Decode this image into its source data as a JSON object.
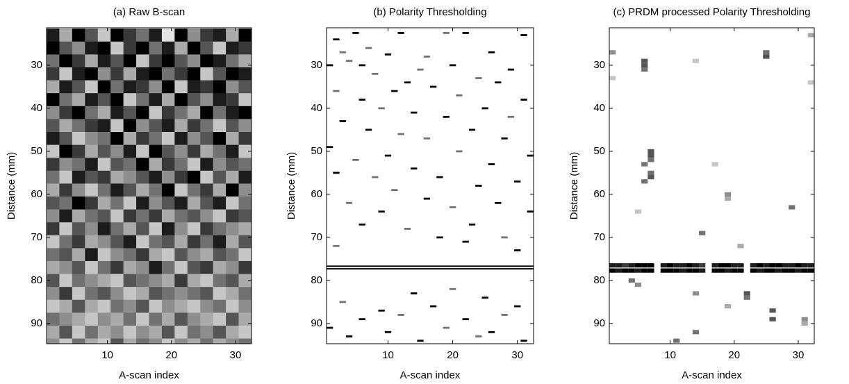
{
  "chart_data": [
    {
      "type": "heatmap",
      "title": "(a) Raw B-scan",
      "xlabel": "A-scan index",
      "ylabel": "Distance (mm)",
      "xlim": [
        0.5,
        32.5
      ],
      "ylim": [
        21.3,
        94.7
      ],
      "xticks": [
        10,
        20,
        30
      ],
      "yticks": [
        30,
        40,
        50,
        60,
        70,
        80,
        90
      ],
      "y_reversed": true,
      "x": [
        1.5,
        3.5,
        5.5,
        7.5,
        9.5,
        11.5,
        13.5,
        15.5,
        17.5,
        19.5,
        21.5,
        23.5,
        25.5,
        27.5,
        29.5,
        31.5
      ],
      "y": [
        23,
        26,
        29,
        32,
        35,
        38,
        41,
        44,
        47,
        50,
        53,
        56,
        59,
        62,
        65,
        68,
        71,
        74,
        77,
        80,
        83,
        86,
        89,
        92,
        95
      ],
      "z": [
        [
          8,
          3,
          9,
          6,
          2,
          9,
          7,
          5,
          8,
          1,
          9,
          4,
          7,
          8,
          3,
          9
        ],
        [
          9,
          6,
          4,
          8,
          9,
          2,
          7,
          9,
          5,
          8,
          3,
          9,
          6,
          2,
          8,
          7
        ],
        [
          5,
          9,
          7,
          3,
          8,
          6,
          9,
          2,
          7,
          9,
          6,
          4,
          9,
          8,
          5,
          3
        ],
        [
          7,
          2,
          8,
          9,
          4,
          7,
          3,
          8,
          9,
          5,
          7,
          9,
          2,
          6,
          9,
          8
        ],
        [
          3,
          8,
          6,
          2,
          9,
          5,
          8,
          7,
          4,
          9,
          2,
          8,
          7,
          9,
          4,
          6
        ],
        [
          9,
          5,
          3,
          8,
          6,
          9,
          2,
          5,
          8,
          3,
          9,
          6,
          4,
          8,
          7,
          2
        ],
        [
          4,
          7,
          9,
          5,
          3,
          8,
          6,
          9,
          2,
          7,
          5,
          3,
          9,
          5,
          8,
          9
        ],
        [
          6,
          3,
          5,
          7,
          8,
          2,
          9,
          4,
          6,
          8,
          3,
          7,
          5,
          2,
          6,
          4
        ],
        [
          8,
          6,
          2,
          4,
          5,
          9,
          3,
          7,
          5,
          2,
          8,
          4,
          6,
          9,
          3,
          7
        ],
        [
          2,
          9,
          7,
          3,
          6,
          4,
          8,
          2,
          9,
          6,
          4,
          7,
          3,
          5,
          8,
          2
        ],
        [
          7,
          4,
          5,
          8,
          2,
          6,
          5,
          9,
          3,
          7,
          5,
          2,
          8,
          4,
          6,
          5
        ],
        [
          5,
          2,
          8,
          6,
          7,
          3,
          4,
          6,
          8,
          4,
          7,
          9,
          2,
          6,
          3,
          8
        ],
        [
          3,
          7,
          4,
          2,
          5,
          8,
          6,
          3,
          5,
          9,
          2,
          5,
          7,
          3,
          9,
          4
        ],
        [
          6,
          5,
          9,
          7,
          3,
          5,
          2,
          8,
          4,
          6,
          8,
          3,
          6,
          8,
          2,
          5
        ],
        [
          4,
          8,
          3,
          5,
          6,
          2,
          7,
          5,
          7,
          3,
          5,
          6,
          4,
          2,
          7,
          6
        ],
        [
          7,
          2,
          6,
          4,
          8,
          5,
          3,
          6,
          2,
          8,
          4,
          2,
          7,
          5,
          4,
          3
        ],
        [
          2,
          5,
          7,
          3,
          4,
          6,
          8,
          2,
          5,
          6,
          3,
          7,
          5,
          8,
          3,
          6
        ],
        [
          5,
          6,
          3,
          8,
          2,
          4,
          5,
          7,
          3,
          2,
          6,
          4,
          3,
          6,
          5,
          2
        ],
        [
          3,
          4,
          6,
          2,
          5,
          7,
          3,
          4,
          8,
          5,
          2,
          6,
          7,
          3,
          4,
          7
        ],
        [
          6,
          2,
          5,
          4,
          3,
          2,
          6,
          5,
          4,
          3,
          7,
          3,
          2,
          5,
          6,
          3
        ],
        [
          4,
          7,
          2,
          5,
          6,
          4,
          2,
          3,
          6,
          5,
          4,
          5,
          6,
          2,
          3,
          5
        ],
        [
          2,
          3,
          6,
          3,
          2,
          5,
          4,
          6,
          2,
          4,
          3,
          2,
          4,
          5,
          2,
          4
        ],
        [
          5,
          4,
          3,
          2,
          4,
          3,
          5,
          2,
          5,
          3,
          6,
          4,
          3,
          2,
          6,
          3
        ],
        [
          3,
          6,
          2,
          5,
          3,
          4,
          2,
          4,
          3,
          6,
          2,
          5,
          4,
          6,
          3,
          2
        ],
        [
          4,
          2,
          5,
          3,
          2,
          6,
          3,
          5,
          4,
          2,
          4,
          3,
          5,
          3,
          4,
          5
        ]
      ]
    },
    {
      "type": "heatmap",
      "title": "(b) Polarity Thresholding",
      "xlabel": "A-scan index",
      "ylabel": "Distance (mm)",
      "xlim": [
        0.5,
        32.5
      ],
      "ylim": [
        21.3,
        94.7
      ],
      "xticks": [
        10,
        20,
        30
      ],
      "yticks": [
        30,
        40,
        50,
        60,
        70,
        80,
        90
      ],
      "y_reversed": true,
      "cells": [
        [
          2,
          24,
          9
        ],
        [
          5,
          22.5,
          9
        ],
        [
          7,
          26,
          5
        ],
        [
          12,
          22.5,
          9
        ],
        [
          19,
          22.5,
          5
        ],
        [
          22,
          22.5,
          9
        ],
        [
          31,
          23,
          9
        ],
        [
          3,
          27,
          5
        ],
        [
          10,
          27.5,
          9
        ],
        [
          16,
          28,
          5
        ],
        [
          26,
          27,
          9
        ],
        [
          1,
          30,
          9
        ],
        [
          4,
          29,
          5
        ],
        [
          6,
          30,
          9
        ],
        [
          15,
          31,
          5
        ],
        [
          20,
          30,
          9
        ],
        [
          29,
          31,
          9
        ],
        [
          8,
          32,
          5
        ],
        [
          24,
          33,
          5
        ],
        [
          13,
          34,
          9
        ],
        [
          27,
          34,
          9
        ],
        [
          2,
          36,
          5
        ],
        [
          11,
          36,
          9
        ],
        [
          17,
          35,
          9
        ],
        [
          6,
          38,
          9
        ],
        [
          21,
          37,
          5
        ],
        [
          31,
          38,
          9
        ],
        [
          9,
          40,
          5
        ],
        [
          14,
          41,
          9
        ],
        [
          25,
          40,
          9
        ],
        [
          3,
          43,
          9
        ],
        [
          19,
          42,
          9
        ],
        [
          29,
          42,
          5
        ],
        [
          7,
          45,
          9
        ],
        [
          12,
          46,
          5
        ],
        [
          23,
          45,
          9
        ],
        [
          16,
          47,
          5
        ],
        [
          28,
          47,
          9
        ],
        [
          1,
          49,
          9
        ],
        [
          10,
          51,
          9
        ],
        [
          21,
          50,
          5
        ],
        [
          32,
          51,
          9
        ],
        [
          5,
          52,
          5
        ],
        [
          14,
          54,
          9
        ],
        [
          26,
          53,
          9
        ],
        [
          2,
          55,
          9
        ],
        [
          8,
          56,
          5
        ],
        [
          18,
          56,
          9
        ],
        [
          30,
          57,
          9
        ],
        [
          11,
          59,
          5
        ],
        [
          24,
          58,
          9
        ],
        [
          4,
          62,
          5
        ],
        [
          16,
          61,
          9
        ],
        [
          27,
          62,
          9
        ],
        [
          9,
          64,
          9
        ],
        [
          20,
          63,
          5
        ],
        [
          32,
          64,
          9
        ],
        [
          6,
          67,
          9
        ],
        [
          13,
          68,
          5
        ],
        [
          23,
          67,
          9
        ],
        [
          18,
          70,
          9
        ],
        [
          28,
          70,
          5
        ],
        [
          2,
          72,
          5
        ],
        [
          22,
          71,
          9
        ],
        [
          30,
          73,
          9
        ],
        [
          14,
          83,
          9
        ],
        [
          20,
          82,
          5
        ],
        [
          25,
          84,
          9
        ],
        [
          3,
          85,
          5
        ],
        [
          9,
          87,
          9
        ],
        [
          17,
          86,
          9
        ],
        [
          30,
          86,
          9
        ],
        [
          6,
          89,
          9
        ],
        [
          12,
          88,
          5
        ],
        [
          22,
          89,
          9
        ],
        [
          28,
          88,
          5
        ],
        [
          1,
          91,
          9
        ],
        [
          10,
          92,
          9
        ],
        [
          19,
          91,
          5
        ],
        [
          26,
          92,
          9
        ],
        [
          4,
          93,
          9
        ],
        [
          15,
          94,
          9
        ],
        [
          24,
          93,
          5
        ],
        [
          31,
          94,
          9
        ]
      ],
      "hlines": [
        76.7,
        77.3
      ]
    },
    {
      "type": "heatmap",
      "title": "(c) PRDM processed Polarity Thresholding",
      "xlabel": "A-scan index",
      "ylabel": "Distance (mm)",
      "xlim": [
        0.5,
        32.5
      ],
      "ylim": [
        21.3,
        94.7
      ],
      "xticks": [
        10,
        20,
        30
      ],
      "yticks": [
        30,
        40,
        50,
        60,
        70,
        80,
        90
      ],
      "y_reversed": true,
      "cells": [
        [
          1,
          27,
          4
        ],
        [
          6,
          29,
          6
        ],
        [
          6,
          30,
          6
        ],
        [
          6,
          31,
          5
        ],
        [
          14,
          29,
          2
        ],
        [
          25,
          27,
          5
        ],
        [
          25,
          28,
          6
        ],
        [
          32,
          23,
          3
        ],
        [
          1,
          33,
          2
        ],
        [
          32,
          34,
          2
        ],
        [
          7,
          50,
          6
        ],
        [
          7,
          51,
          6
        ],
        [
          7,
          52,
          5
        ],
        [
          6,
          53,
          5
        ],
        [
          7,
          55,
          5
        ],
        [
          7,
          56,
          6
        ],
        [
          6,
          57,
          5
        ],
        [
          17,
          53,
          2
        ],
        [
          19,
          60,
          4
        ],
        [
          19,
          61,
          3
        ],
        [
          15,
          69,
          5
        ],
        [
          29,
          63,
          5
        ],
        [
          5,
          64,
          2
        ],
        [
          21,
          72,
          3
        ],
        [
          1,
          76.5,
          8
        ],
        [
          2,
          76.5,
          8
        ],
        [
          3,
          76.5,
          7
        ],
        [
          4,
          76.5,
          8
        ],
        [
          5,
          76.5,
          9
        ],
        [
          6,
          76.5,
          9
        ],
        [
          7,
          76.5,
          9
        ],
        [
          9,
          76.5,
          8
        ],
        [
          10,
          76.5,
          9
        ],
        [
          11,
          76.5,
          8
        ],
        [
          12,
          76.5,
          8
        ],
        [
          13,
          76.5,
          9
        ],
        [
          14,
          76.5,
          8
        ],
        [
          15,
          76.5,
          7
        ],
        [
          17,
          76.5,
          8
        ],
        [
          18,
          76.5,
          9
        ],
        [
          19,
          76.5,
          9
        ],
        [
          20,
          76.5,
          8
        ],
        [
          21,
          76.5,
          8
        ],
        [
          23,
          76.5,
          8
        ],
        [
          24,
          76.5,
          9
        ],
        [
          25,
          76.5,
          8
        ],
        [
          26,
          76.5,
          9
        ],
        [
          27,
          76.5,
          9
        ],
        [
          28,
          76.5,
          8
        ],
        [
          29,
          76.5,
          8
        ],
        [
          30,
          76.5,
          9
        ],
        [
          31,
          76.5,
          8
        ],
        [
          32,
          76.5,
          8
        ],
        [
          1,
          77.7,
          9
        ],
        [
          2,
          77.7,
          8
        ],
        [
          3,
          77.7,
          9
        ],
        [
          4,
          77.7,
          9
        ],
        [
          5,
          77.7,
          8
        ],
        [
          6,
          77.7,
          9
        ],
        [
          7,
          77.7,
          9
        ],
        [
          9,
          77.7,
          9
        ],
        [
          10,
          77.7,
          9
        ],
        [
          11,
          77.7,
          9
        ],
        [
          12,
          77.7,
          8
        ],
        [
          13,
          77.7,
          9
        ],
        [
          14,
          77.7,
          9
        ],
        [
          15,
          77.7,
          8
        ],
        [
          17,
          77.7,
          9
        ],
        [
          18,
          77.7,
          9
        ],
        [
          19,
          77.7,
          8
        ],
        [
          20,
          77.7,
          9
        ],
        [
          21,
          77.7,
          9
        ],
        [
          23,
          77.7,
          9
        ],
        [
          24,
          77.7,
          8
        ],
        [
          25,
          77.7,
          9
        ],
        [
          26,
          77.7,
          9
        ],
        [
          27,
          77.7,
          8
        ],
        [
          28,
          77.7,
          9
        ],
        [
          29,
          77.7,
          9
        ],
        [
          30,
          77.7,
          8
        ],
        [
          31,
          77.7,
          9
        ],
        [
          32,
          77.7,
          9
        ],
        [
          4,
          80,
          5
        ],
        [
          5,
          81,
          4
        ],
        [
          14,
          83,
          4
        ],
        [
          22,
          83,
          6
        ],
        [
          22,
          84,
          5
        ],
        [
          19,
          86,
          3
        ],
        [
          26,
          87,
          6
        ],
        [
          26,
          89,
          6
        ],
        [
          14,
          92,
          5
        ],
        [
          11,
          94,
          5
        ],
        [
          31,
          89,
          4
        ],
        [
          31,
          90,
          3
        ]
      ]
    }
  ]
}
